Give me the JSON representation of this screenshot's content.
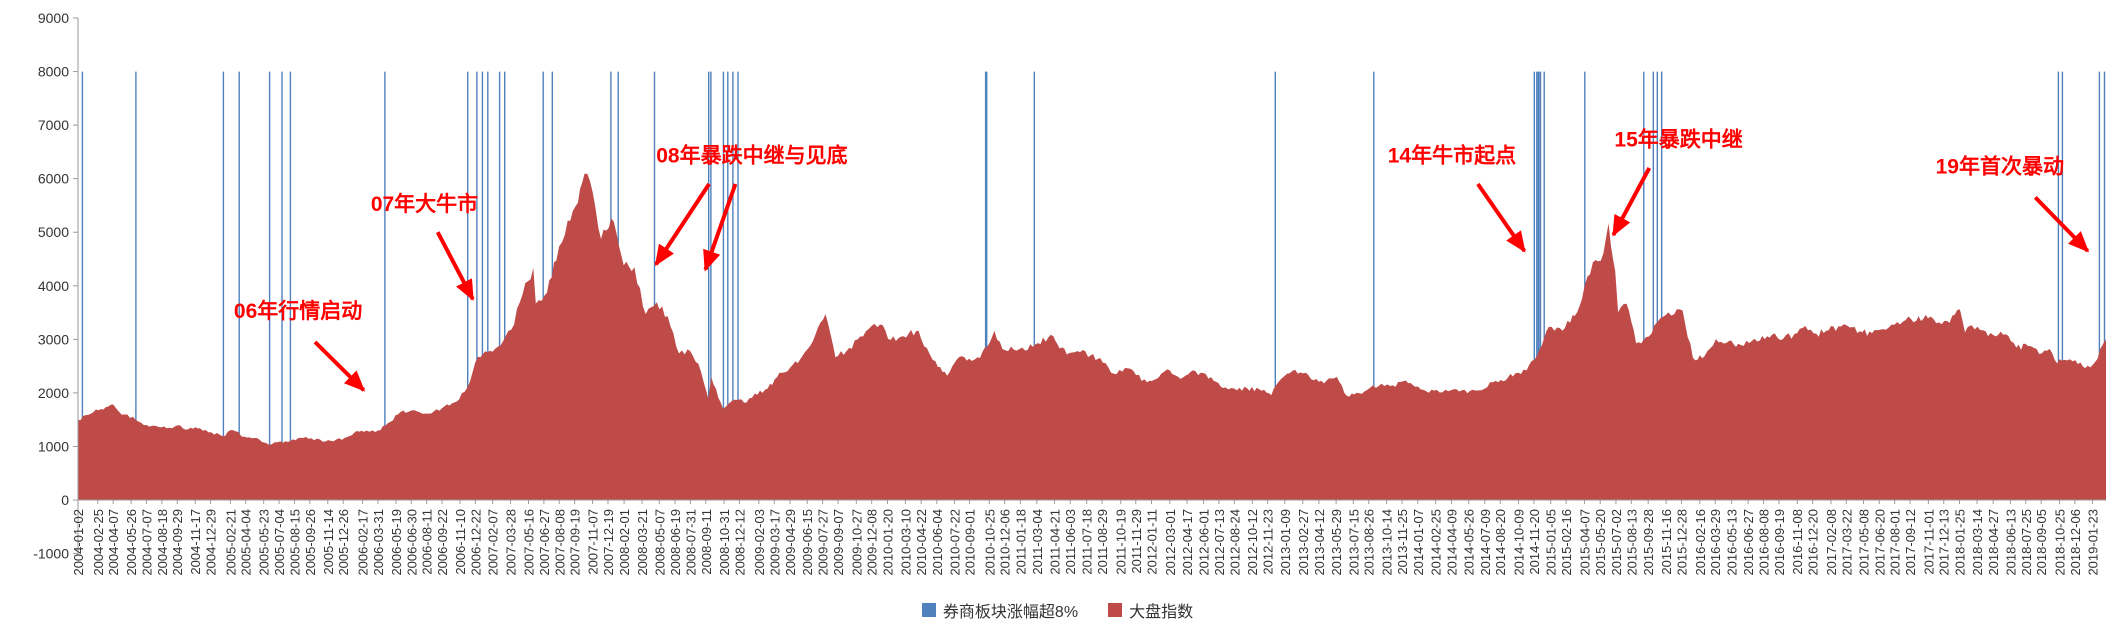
{
  "chart_data": {
    "type": "area",
    "title": "",
    "annotation_color": "#FF0000",
    "grid": false,
    "x_axis": {
      "start": "2004-01-02",
      "end": "2019-03-01",
      "tick_labels": [
        "2004-01-02",
        "2004-02-25",
        "2004-04-07",
        "2004-05-26",
        "2004-07-07",
        "2004-08-18",
        "2004-09-29",
        "2004-11-17",
        "2004-12-29",
        "2005-02-21",
        "2005-04-04",
        "2005-05-23",
        "2005-07-04",
        "2005-08-15",
        "2005-09-26",
        "2005-11-14",
        "2005-12-26",
        "2006-02-17",
        "2006-03-31",
        "2006-05-19",
        "2006-06-30",
        "2006-08-11",
        "2006-09-22",
        "2006-11-10",
        "2006-12-22",
        "2007-02-07",
        "2007-03-28",
        "2007-05-16",
        "2007-06-27",
        "2007-08-08",
        "2007-09-19",
        "2007-11-07",
        "2007-12-19",
        "2008-02-01",
        "2008-03-21",
        "2008-05-07",
        "2008-06-19",
        "2008-07-31",
        "2008-09-11",
        "2008-10-31",
        "2008-12-12",
        "2009-02-03",
        "2009-03-17",
        "2009-04-29",
        "2009-06-15",
        "2009-07-27",
        "2009-09-07",
        "2009-10-27",
        "2009-12-08",
        "2010-01-20",
        "2010-03-10",
        "2010-04-22",
        "2010-06-04",
        "2010-07-22",
        "2010-09-01",
        "2010-10-25",
        "2010-12-06",
        "2011-01-18",
        "2011-03-04",
        "2011-04-21",
        "2011-06-03",
        "2011-07-18",
        "2011-08-29",
        "2011-10-19",
        "2011-11-29",
        "2012-01-11",
        "2012-03-01",
        "2012-04-17",
        "2012-06-01",
        "2012-07-13",
        "2012-08-24",
        "2012-10-12",
        "2012-11-23",
        "2013-01-09",
        "2013-02-27",
        "2013-04-12",
        "2013-05-29",
        "2013-07-15",
        "2013-08-26",
        "2013-10-14",
        "2013-11-25",
        "2014-01-07",
        "2014-02-25",
        "2014-04-09",
        "2014-05-26",
        "2014-07-09",
        "2014-08-20",
        "2014-10-09",
        "2014-11-20",
        "2015-01-05",
        "2015-02-16",
        "2015-04-07",
        "2015-05-20",
        "2015-07-02",
        "2015-08-13",
        "2015-09-28",
        "2015-11-16",
        "2015-12-28",
        "2016-02-16",
        "2016-03-29",
        "2016-05-13",
        "2016-06-27",
        "2016-08-08",
        "2016-09-19",
        "2016-11-08",
        "2016-12-20",
        "2017-02-08",
        "2017-03-22",
        "2017-05-08",
        "2017-06-20",
        "2017-08-01",
        "2017-09-12",
        "2017-11-01",
        "2017-12-13",
        "2018-01-25",
        "2018-03-14",
        "2018-04-27",
        "2018-06-13",
        "2018-07-25",
        "2018-09-05",
        "2018-10-25",
        "2018-12-06",
        "2019-01-23"
      ]
    },
    "y_axis": {
      "min": -1000,
      "max": 9000,
      "step": 1000,
      "tick_labels": [
        "9000",
        "8000",
        "7000",
        "6000",
        "5000",
        "4000",
        "3000",
        "2000",
        "1000",
        "0",
        "-1000"
      ]
    },
    "series": [
      {
        "name": "券商板块涨幅超8%",
        "type": "event-lines",
        "color": "#4F81BD",
        "span": [
          0,
          8000
        ],
        "dates": [
          "2004-01-14",
          "2004-06-08",
          "2005-02-02",
          "2005-03-17",
          "2005-06-08",
          "2005-07-12",
          "2005-08-04",
          "2006-04-19",
          "2006-12-01",
          "2006-12-26",
          "2007-01-10",
          "2007-01-25",
          "2007-02-26",
          "2007-03-12",
          "2007-06-25",
          "2007-07-20",
          "2007-12-27",
          "2008-01-16",
          "2008-04-24",
          "2008-09-19",
          "2008-09-25",
          "2008-10-29",
          "2008-11-10",
          "2008-11-24",
          "2008-12-08",
          "2010-10-15",
          "2010-10-18",
          "2011-02-25",
          "2012-12-14",
          "2013-09-09",
          "2014-11-21",
          "2014-11-28",
          "2014-12-02",
          "2014-12-04",
          "2014-12-08",
          "2014-12-18",
          "2015-04-08",
          "2015-09-16",
          "2015-10-12",
          "2015-10-23",
          "2015-11-04",
          "2018-10-22",
          "2018-11-02",
          "2019-02-11",
          "2019-02-25"
        ]
      },
      {
        "name": "大盘指数",
        "type": "area",
        "color": "#BE4B48",
        "points": [
          [
            "2004-01-02",
            1497
          ],
          [
            "2004-01-30",
            1590
          ],
          [
            "2004-02-27",
            1675
          ],
          [
            "2004-04-07",
            1783
          ],
          [
            "2004-04-30",
            1595
          ],
          [
            "2004-05-31",
            1555
          ],
          [
            "2004-06-30",
            1399
          ],
          [
            "2004-07-30",
            1386
          ],
          [
            "2004-08-31",
            1342
          ],
          [
            "2004-09-30",
            1396
          ],
          [
            "2004-10-29",
            1320
          ],
          [
            "2004-11-30",
            1340
          ],
          [
            "2004-12-31",
            1266
          ],
          [
            "2005-01-31",
            1191
          ],
          [
            "2005-02-28",
            1306
          ],
          [
            "2005-03-31",
            1181
          ],
          [
            "2005-04-29",
            1159
          ],
          [
            "2005-05-31",
            1060
          ],
          [
            "2005-06-06",
            1034
          ],
          [
            "2005-06-30",
            1080
          ],
          [
            "2005-07-29",
            1083
          ],
          [
            "2005-08-31",
            1162
          ],
          [
            "2005-09-30",
            1155
          ],
          [
            "2005-10-31",
            1092
          ],
          [
            "2005-11-30",
            1099
          ],
          [
            "2005-12-30",
            1161
          ],
          [
            "2006-01-25",
            1258
          ],
          [
            "2006-02-28",
            1299
          ],
          [
            "2006-03-31",
            1298
          ],
          [
            "2006-04-28",
            1440
          ],
          [
            "2006-05-31",
            1641
          ],
          [
            "2006-06-30",
            1672
          ],
          [
            "2006-07-31",
            1612
          ],
          [
            "2006-08-31",
            1658
          ],
          [
            "2006-09-29",
            1752
          ],
          [
            "2006-10-31",
            1837
          ],
          [
            "2006-11-30",
            2099
          ],
          [
            "2006-12-29",
            2675
          ],
          [
            "2007-01-31",
            2786
          ],
          [
            "2007-02-28",
            2881
          ],
          [
            "2007-03-30",
            3183
          ],
          [
            "2007-04-30",
            3841
          ],
          [
            "2007-05-29",
            4335
          ],
          [
            "2007-06-05",
            3670
          ],
          [
            "2007-06-29",
            3820
          ],
          [
            "2007-07-31",
            4471
          ],
          [
            "2007-08-31",
            5218
          ],
          [
            "2007-09-28",
            5552
          ],
          [
            "2007-10-16",
            6092
          ],
          [
            "2007-10-31",
            5954
          ],
          [
            "2007-11-30",
            4871
          ],
          [
            "2007-12-28",
            5261
          ],
          [
            "2008-01-31",
            4383
          ],
          [
            "2008-02-29",
            4348
          ],
          [
            "2008-03-31",
            3472
          ],
          [
            "2008-04-30",
            3693
          ],
          [
            "2008-05-30",
            3433
          ],
          [
            "2008-06-30",
            2736
          ],
          [
            "2008-07-31",
            2775
          ],
          [
            "2008-08-29",
            2397
          ],
          [
            "2008-09-18",
            1896
          ],
          [
            "2008-09-26",
            2294
          ],
          [
            "2008-10-28",
            1706
          ],
          [
            "2008-11-28",
            1871
          ],
          [
            "2008-12-31",
            1820
          ],
          [
            "2009-01-23",
            1990
          ],
          [
            "2009-02-27",
            2082
          ],
          [
            "2009-03-31",
            2373
          ],
          [
            "2009-04-30",
            2477
          ],
          [
            "2009-05-27",
            2632
          ],
          [
            "2009-06-30",
            2959
          ],
          [
            "2009-08-04",
            3471
          ],
          [
            "2009-08-31",
            2667
          ],
          [
            "2009-09-30",
            2779
          ],
          [
            "2009-10-30",
            2995
          ],
          [
            "2009-11-30",
            3195
          ],
          [
            "2009-12-31",
            3277
          ],
          [
            "2010-01-29",
            2989
          ],
          [
            "2010-02-26",
            3051
          ],
          [
            "2010-04-15",
            3160
          ],
          [
            "2010-04-30",
            2870
          ],
          [
            "2010-05-31",
            2592
          ],
          [
            "2010-07-02",
            2320
          ],
          [
            "2010-07-30",
            2637
          ],
          [
            "2010-08-31",
            2638
          ],
          [
            "2010-09-30",
            2655
          ],
          [
            "2010-11-08",
            3159
          ],
          [
            "2010-11-30",
            2820
          ],
          [
            "2010-12-31",
            2808
          ],
          [
            "2011-01-31",
            2790
          ],
          [
            "2011-02-28",
            2905
          ],
          [
            "2011-04-18",
            3057
          ],
          [
            "2011-04-29",
            2911
          ],
          [
            "2011-05-31",
            2743
          ],
          [
            "2011-06-30",
            2762
          ],
          [
            "2011-07-29",
            2701
          ],
          [
            "2011-08-31",
            2567
          ],
          [
            "2011-09-30",
            2359
          ],
          [
            "2011-10-31",
            2468
          ],
          [
            "2011-11-30",
            2333
          ],
          [
            "2011-12-30",
            2199
          ],
          [
            "2012-01-31",
            2292
          ],
          [
            "2012-02-29",
            2428
          ],
          [
            "2012-03-30",
            2262
          ],
          [
            "2012-04-27",
            2396
          ],
          [
            "2012-05-31",
            2372
          ],
          [
            "2012-06-29",
            2225
          ],
          [
            "2012-07-31",
            2103
          ],
          [
            "2012-08-31",
            2047
          ],
          [
            "2012-09-28",
            2086
          ],
          [
            "2012-10-31",
            2068
          ],
          [
            "2012-12-03",
            1960
          ],
          [
            "2012-12-31",
            2269
          ],
          [
            "2013-02-06",
            2434
          ],
          [
            "2013-02-28",
            2365
          ],
          [
            "2013-03-29",
            2236
          ],
          [
            "2013-04-26",
            2177
          ],
          [
            "2013-05-31",
            2300
          ],
          [
            "2013-06-27",
            1950
          ],
          [
            "2013-07-31",
            1993
          ],
          [
            "2013-08-30",
            2098
          ],
          [
            "2013-09-30",
            2174
          ],
          [
            "2013-10-31",
            2141
          ],
          [
            "2013-11-29",
            2220
          ],
          [
            "2013-12-31",
            2116
          ],
          [
            "2014-01-30",
            2033
          ],
          [
            "2014-02-28",
            2056
          ],
          [
            "2014-03-31",
            2033
          ],
          [
            "2014-04-30",
            2026
          ],
          [
            "2014-05-30",
            2039
          ],
          [
            "2014-06-30",
            2048
          ],
          [
            "2014-07-31",
            2201
          ],
          [
            "2014-08-29",
            2217
          ],
          [
            "2014-09-30",
            2363
          ],
          [
            "2014-10-31",
            2420
          ],
          [
            "2014-11-28",
            2683
          ],
          [
            "2014-12-31",
            3234
          ],
          [
            "2015-01-30",
            3210
          ],
          [
            "2015-02-27",
            3310
          ],
          [
            "2015-03-31",
            3747
          ],
          [
            "2015-04-30",
            4441
          ],
          [
            "2015-05-29",
            4612
          ],
          [
            "2015-06-12",
            5166
          ],
          [
            "2015-06-30",
            4277
          ],
          [
            "2015-07-08",
            3507
          ],
          [
            "2015-07-31",
            3664
          ],
          [
            "2015-08-26",
            2927
          ],
          [
            "2015-09-30",
            3053
          ],
          [
            "2015-10-30",
            3383
          ],
          [
            "2015-11-30",
            3445
          ],
          [
            "2015-12-31",
            3539
          ],
          [
            "2016-01-28",
            2656
          ],
          [
            "2016-02-29",
            2688
          ],
          [
            "2016-03-31",
            3004
          ],
          [
            "2016-04-29",
            2938
          ],
          [
            "2016-05-31",
            2917
          ],
          [
            "2016-06-30",
            2930
          ],
          [
            "2016-07-29",
            2979
          ],
          [
            "2016-08-31",
            3085
          ],
          [
            "2016-09-30",
            3005
          ],
          [
            "2016-10-31",
            3100
          ],
          [
            "2016-11-30",
            3250
          ],
          [
            "2016-12-30",
            3104
          ],
          [
            "2017-01-26",
            3159
          ],
          [
            "2017-02-28",
            3242
          ],
          [
            "2017-03-31",
            3223
          ],
          [
            "2017-04-28",
            3155
          ],
          [
            "2017-05-31",
            3117
          ],
          [
            "2017-06-30",
            3192
          ],
          [
            "2017-07-31",
            3273
          ],
          [
            "2017-08-31",
            3361
          ],
          [
            "2017-09-29",
            3349
          ],
          [
            "2017-10-31",
            3393
          ],
          [
            "2017-11-30",
            3317
          ],
          [
            "2017-12-29",
            3307
          ],
          [
            "2018-01-26",
            3558
          ],
          [
            "2018-02-09",
            3130
          ],
          [
            "2018-02-28",
            3259
          ],
          [
            "2018-03-30",
            3169
          ],
          [
            "2018-04-27",
            3082
          ],
          [
            "2018-05-31",
            3095
          ],
          [
            "2018-06-29",
            2847
          ],
          [
            "2018-07-31",
            2876
          ],
          [
            "2018-08-31",
            2725
          ],
          [
            "2018-09-28",
            2821
          ],
          [
            "2018-10-19",
            2550
          ],
          [
            "2018-10-31",
            2603
          ],
          [
            "2018-11-30",
            2588
          ],
          [
            "2018-12-28",
            2494
          ],
          [
            "2019-01-03",
            2464
          ],
          [
            "2019-01-31",
            2585
          ],
          [
            "2019-02-25",
            2961
          ],
          [
            "2019-03-01",
            2994
          ]
        ]
      }
    ],
    "annotations": [
      {
        "text": "06年行情启动",
        "label_date": "2005-08-25",
        "label_value": 3400,
        "arrows": [
          {
            "from_date": "2005-10-10",
            "from_value": 2950,
            "to_date": "2006-02-20",
            "to_value": 2050
          }
        ]
      },
      {
        "text": "07年大牛市",
        "label_date": "2006-08-05",
        "label_value": 5400,
        "arrows": [
          {
            "from_date": "2006-09-10",
            "from_value": 5000,
            "to_date": "2006-12-15",
            "to_value": 3750
          }
        ]
      },
      {
        "text": "08年暴跌中继与见底",
        "label_date": "2009-01-15",
        "label_value": 6300,
        "arrows": [
          {
            "from_date": "2008-09-20",
            "from_value": 5900,
            "to_date": "2008-04-28",
            "to_value": 4400
          },
          {
            "from_date": "2008-12-01",
            "from_value": 5900,
            "to_date": "2008-09-10",
            "to_value": 4300
          }
        ]
      },
      {
        "text": "14年牛市起点",
        "label_date": "2014-04-10",
        "label_value": 6300,
        "arrows": [
          {
            "from_date": "2014-06-20",
            "from_value": 5900,
            "to_date": "2014-10-25",
            "to_value": 4650
          }
        ]
      },
      {
        "text": "15年暴跌中继",
        "label_date": "2015-12-20",
        "label_value": 6600,
        "arrows": [
          {
            "from_date": "2015-10-01",
            "from_value": 6200,
            "to_date": "2015-06-25",
            "to_value": 4950
          }
        ]
      },
      {
        "text": "19年首次暴动",
        "label_date": "2018-05-15",
        "label_value": 6100,
        "arrows": [
          {
            "from_date": "2018-08-20",
            "from_value": 5650,
            "to_date": "2019-01-10",
            "to_value": 4650
          }
        ]
      }
    ],
    "legend": {
      "position": "bottom",
      "items": [
        {
          "label": "券商板块涨幅超8%",
          "color": "#4F81BD"
        },
        {
          "label": "大盘指数",
          "color": "#BE4B48"
        }
      ]
    }
  }
}
